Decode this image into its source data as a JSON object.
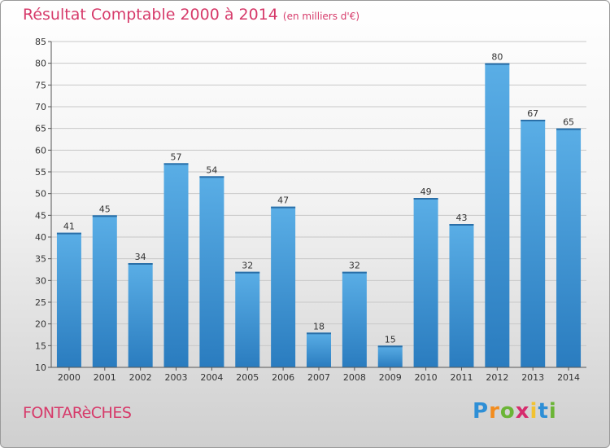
{
  "header": {
    "title": "Résultat Comptable 2000 à 2014",
    "subtitle": "(en milliers d'€)"
  },
  "footer": {
    "place": "FONTARèCHES",
    "brand": "Proxiti"
  },
  "colors": {
    "accent": "#d63a6a",
    "bar_light": "#5aaee6",
    "bar_dark": "#2a7cbf"
  },
  "chart_data": {
    "type": "bar",
    "title": "Résultat Comptable 2000 à 2014",
    "subtitle": "(en milliers d'€)",
    "categories": [
      "2000",
      "2001",
      "2002",
      "2003",
      "2004",
      "2005",
      "2006",
      "2007",
      "2008",
      "2009",
      "2010",
      "2011",
      "2012",
      "2013",
      "2014"
    ],
    "values": [
      41,
      45,
      34,
      57,
      54,
      32,
      47,
      18,
      32,
      15,
      49,
      43,
      80,
      67,
      65
    ],
    "ylim": [
      10,
      85
    ],
    "yticks": [
      10,
      15,
      20,
      25,
      30,
      35,
      40,
      45,
      50,
      55,
      60,
      65,
      70,
      75,
      80,
      85
    ],
    "grid": true,
    "xlabel": "",
    "ylabel": ""
  }
}
